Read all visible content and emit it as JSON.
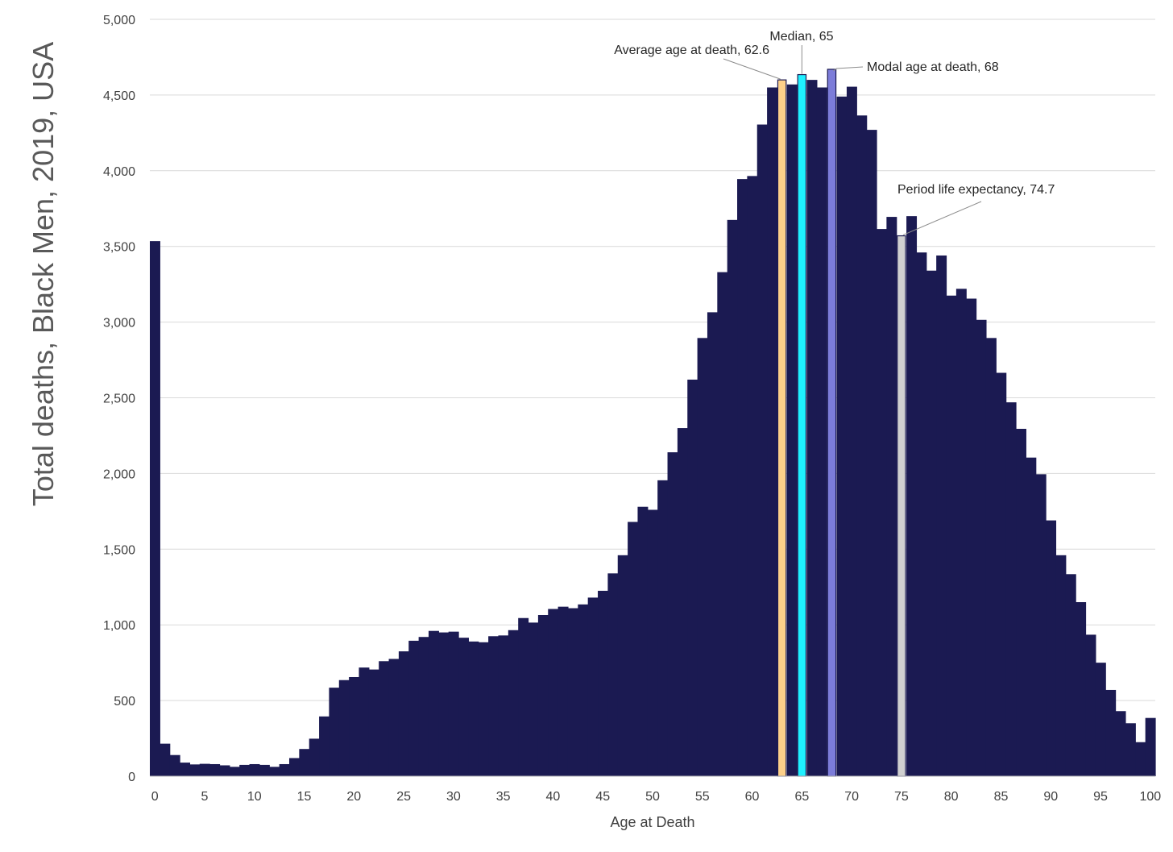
{
  "chart_data": {
    "type": "bar",
    "ylabel": "Total deaths,  Black Men, 2019, USA",
    "xlabel": "Age at Death",
    "ylim": [
      0,
      5000
    ],
    "xlim": [
      0,
      100
    ],
    "grid": true,
    "yticks": [
      "0",
      "500",
      "1,000",
      "1,500",
      "2,000",
      "2,500",
      "3,000",
      "3,500",
      "4,000",
      "4,500",
      "5,000"
    ],
    "ytick_values": [
      0,
      500,
      1000,
      1500,
      2000,
      2500,
      3000,
      3500,
      4000,
      4500,
      5000
    ],
    "xticks": [
      "0",
      "5",
      "10",
      "15",
      "20",
      "25",
      "30",
      "35",
      "40",
      "45",
      "50",
      "55",
      "60",
      "65",
      "70",
      "75",
      "80",
      "85",
      "90",
      "95",
      "100"
    ],
    "xtick_values": [
      0,
      5,
      10,
      15,
      20,
      25,
      30,
      35,
      40,
      45,
      50,
      55,
      60,
      65,
      70,
      75,
      80,
      85,
      90,
      95,
      100
    ],
    "bar_color": "#1b1a52",
    "values": [
      3535,
      215,
      140,
      90,
      78,
      82,
      80,
      72,
      62,
      75,
      80,
      75,
      62,
      80,
      120,
      180,
      248,
      395,
      585,
      635,
      655,
      718,
      705,
      760,
      775,
      825,
      895,
      920,
      960,
      950,
      955,
      915,
      890,
      885,
      925,
      930,
      965,
      1045,
      1015,
      1065,
      1105,
      1120,
      1110,
      1135,
      1180,
      1225,
      1340,
      1460,
      1680,
      1780,
      1760,
      1955,
      2140,
      2300,
      2620,
      2895,
      3065,
      3330,
      3675,
      3945,
      3965,
      4305,
      4550,
      4600,
      4570,
      4635,
      4600,
      4550,
      4670,
      4490,
      4555,
      4365,
      4270,
      3615,
      3695,
      3570,
      3700,
      3460,
      3340,
      3440,
      3175,
      3220,
      3155,
      3015,
      2895,
      2665,
      2470,
      2295,
      2105,
      1995,
      1690,
      1460,
      1335,
      1150,
      935,
      750,
      570,
      430,
      350,
      225,
      385
    ],
    "highlights": [
      {
        "age": 63,
        "value": 4600,
        "color": "#fdd089",
        "label": "Average age at death, 62.6"
      },
      {
        "age": 65,
        "value": 4635,
        "color": "#1ff0ff",
        "label": "Median, 65"
      },
      {
        "age": 68,
        "value": 4670,
        "color": "#7c7cd9",
        "label": "Modal age at death, 68"
      },
      {
        "age": 75,
        "value": 3570,
        "color": "#d0d0d0",
        "label": "Period life expectancy, 74.7"
      }
    ]
  }
}
